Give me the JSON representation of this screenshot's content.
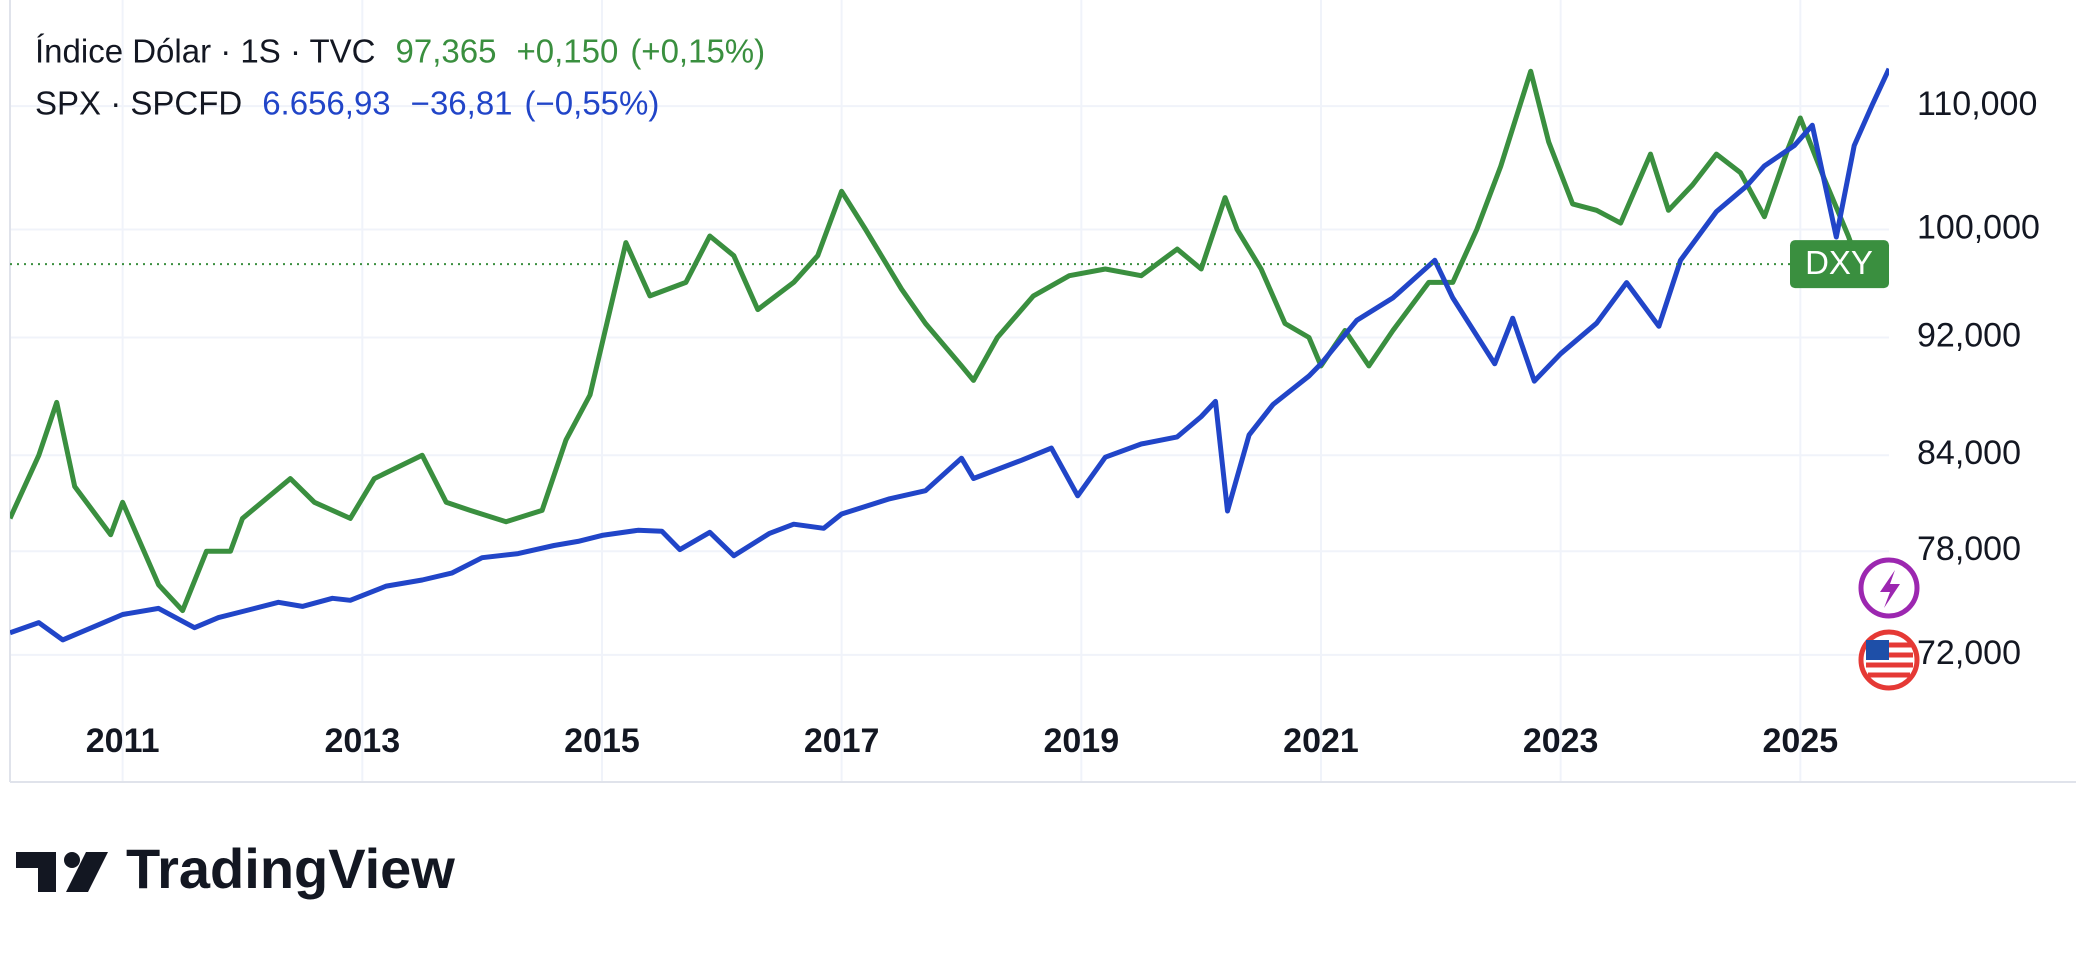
{
  "chart_data": {
    "type": "line",
    "legend": [
      {
        "value": "97,365",
        "change": "+0,150",
        "change_pct": "(+0,15%)"
      },
      {
        "value": "6.656,93",
        "change": "−36,81",
        "change_pct": "(−0,55%)"
      }
    ],
    "series": [
      {
        "name": "Índice Dólar · 1S · TVC",
        "price_tag": "DXY",
        "color": "#3a8f3f",
        "x": [
          2010.06,
          2010.3,
          2010.45,
          2010.6,
          2010.9,
          2011.0,
          2011.3,
          2011.5,
          2011.7,
          2011.9,
          2012.0,
          2012.4,
          2012.6,
          2012.9,
          2013.1,
          2013.5,
          2013.7,
          2013.9,
          2014.2,
          2014.5,
          2014.7,
          2014.9,
          2015.2,
          2015.4,
          2015.7,
          2015.9,
          2016.1,
          2016.3,
          2016.6,
          2016.8,
          2017.0,
          2017.2,
          2017.5,
          2017.7,
          2018.0,
          2018.1,
          2018.3,
          2018.6,
          2018.9,
          2019.2,
          2019.5,
          2019.8,
          2020.0,
          2020.2,
          2020.3,
          2020.5,
          2020.7,
          2020.9,
          2021.0,
          2021.2,
          2021.4,
          2021.6,
          2021.9,
          2022.1,
          2022.3,
          2022.5,
          2022.75,
          2022.9,
          2023.1,
          2023.3,
          2023.5,
          2023.75,
          2023.9,
          2024.1,
          2024.3,
          2024.5,
          2024.7,
          2024.9,
          2025.0,
          2025.2,
          2025.4,
          2025.5,
          2025.7,
          2025.74
        ],
        "values": [
          80,
          84,
          87.5,
          82,
          79,
          81,
          76,
          74.5,
          78,
          78,
          80,
          82.5,
          81,
          80,
          82.5,
          84,
          81,
          80.5,
          79.8,
          80.5,
          85,
          88,
          99,
          95,
          96,
          99.5,
          98,
          94,
          96,
          98,
          103,
          100,
          95.5,
          93,
          90,
          89,
          92,
          95,
          96.5,
          97,
          96.5,
          98.5,
          97,
          102.5,
          100,
          97,
          93,
          92,
          90,
          92.5,
          90,
          92.5,
          96,
          96,
          100,
          105,
          113,
          107,
          102,
          101.5,
          100.5,
          106,
          101.5,
          103.5,
          106,
          104.5,
          101,
          106.5,
          109,
          104,
          99.5,
          97,
          97.4,
          97.365
        ]
      },
      {
        "name": "SPX · SPCFD",
        "color": "#2145c8",
        "axis": "y2",
        "x": [
          2010.06,
          2010.3,
          2010.5,
          2010.8,
          2011.0,
          2011.3,
          2011.6,
          2011.8,
          2012.0,
          2012.3,
          2012.5,
          2012.75,
          2012.9,
          2013.2,
          2013.5,
          2013.75,
          2014.0,
          2014.3,
          2014.6,
          2014.8,
          2015.0,
          2015.3,
          2015.5,
          2015.65,
          2015.9,
          2016.1,
          2016.4,
          2016.6,
          2016.85,
          2017.0,
          2017.4,
          2017.7,
          2018.0,
          2018.1,
          2018.5,
          2018.75,
          2018.97,
          2019.2,
          2019.5,
          2019.8,
          2020.0,
          2020.12,
          2020.22,
          2020.4,
          2020.6,
          2020.9,
          2021.0,
          2021.3,
          2021.6,
          2021.95,
          2022.1,
          2022.45,
          2022.6,
          2022.78,
          2023.0,
          2023.3,
          2023.55,
          2023.82,
          2024.0,
          2024.3,
          2024.55,
          2024.7,
          2024.95,
          2025.1,
          2025.3,
          2025.45,
          2025.6,
          2025.74
        ],
        "values": [
          1100,
          1200,
          1030,
          1180,
          1280,
          1340,
          1150,
          1250,
          1310,
          1400,
          1360,
          1440,
          1420,
          1560,
          1620,
          1690,
          1840,
          1880,
          1960,
          2000,
          2060,
          2110,
          2100,
          1920,
          2090,
          1860,
          2080,
          2170,
          2130,
          2270,
          2420,
          2500,
          2820,
          2620,
          2800,
          2920,
          2450,
          2830,
          2960,
          3030,
          3230,
          3380,
          2300,
          3050,
          3350,
          3630,
          3750,
          4180,
          4400,
          4770,
          4400,
          3750,
          4200,
          3580,
          3850,
          4150,
          4550,
          4120,
          4770,
          5250,
          5500,
          5700,
          5900,
          6100,
          5000,
          5900,
          6300,
          6657
        ]
      }
    ],
    "xlim": [
      2010.06,
      2025.74
    ],
    "xticks": [
      2011,
      2013,
      2015,
      2017,
      2019,
      2021,
      2023,
      2025
    ],
    "ylim": [
      69.8,
      119.4
    ],
    "yscale": "log",
    "yticks": [
      {
        "value": 72,
        "label": "72,000"
      },
      {
        "value": 78,
        "label": "78,000"
      },
      {
        "value": 84,
        "label": "84,000"
      },
      {
        "value": 92,
        "label": "92,000"
      },
      {
        "value": 100,
        "label": "100,000"
      },
      {
        "value": 110,
        "label": "110,000"
      }
    ],
    "y2lim": [
      487,
      7335
    ],
    "grid": true,
    "watermark": "TradingView"
  }
}
